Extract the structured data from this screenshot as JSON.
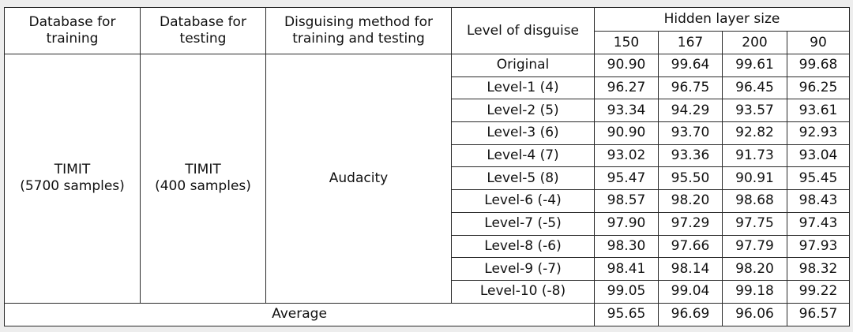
{
  "headers": {
    "train_db": [
      "Database for",
      "training"
    ],
    "test_db": [
      "Database for",
      "testing"
    ],
    "method": [
      "Disguising method for",
      "training and testing"
    ],
    "level": "Level of disguise",
    "hidden": "Hidden layer size",
    "sizes": [
      "150",
      "167",
      "200",
      "90"
    ]
  },
  "group": {
    "train_db": [
      "TIMIT",
      "(5700 samples)"
    ],
    "test_db": [
      "TIMIT",
      "(400 samples)"
    ],
    "method": "Audacity"
  },
  "rows": [
    {
      "level": "Original",
      "values": [
        "90.90",
        "99.64",
        "99.61",
        "99.68"
      ]
    },
    {
      "level": "Level-1 (4)",
      "values": [
        "96.27",
        "96.75",
        "96.45",
        "96.25"
      ]
    },
    {
      "level": "Level-2 (5)",
      "values": [
        "93.34",
        "94.29",
        "93.57",
        "93.61"
      ]
    },
    {
      "level": "Level-3 (6)",
      "values": [
        "90.90",
        "93.70",
        "92.82",
        "92.93"
      ]
    },
    {
      "level": "Level-4 (7)",
      "values": [
        "93.02",
        "93.36",
        "91.73",
        "93.04"
      ]
    },
    {
      "level": "Level-5 (8)",
      "values": [
        "95.47",
        "95.50",
        "90.91",
        "95.45"
      ]
    },
    {
      "level": "Level-6 (-4)",
      "values": [
        "98.57",
        "98.20",
        "98.68",
        "98.43"
      ]
    },
    {
      "level": "Level-7 (-5)",
      "values": [
        "97.90",
        "97.29",
        "97.75",
        "97.43"
      ]
    },
    {
      "level": "Level-8 (-6)",
      "values": [
        "98.30",
        "97.66",
        "97.79",
        "97.93"
      ]
    },
    {
      "level": "Level-9 (-7)",
      "values": [
        "98.41",
        "98.14",
        "98.20",
        "98.32"
      ]
    },
    {
      "level": "Level-10 (-8)",
      "values": [
        "99.05",
        "99.04",
        "99.18",
        "99.22"
      ]
    }
  ],
  "average": {
    "label": "Average",
    "values": [
      "95.65",
      "96.69",
      "96.06",
      "96.57"
    ]
  }
}
